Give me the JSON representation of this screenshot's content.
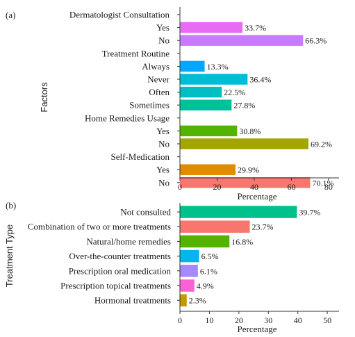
{
  "chart_data": [
    {
      "type": "bar",
      "orientation": "horizontal",
      "panel_label": "(a)",
      "xlabel": "Percentage",
      "ylabel": "Factors",
      "xlim": [
        0,
        85
      ],
      "xticks": [
        0,
        20,
        40,
        60,
        80
      ],
      "grid": false,
      "legend": "none",
      "rows": [
        {
          "label": "Dermatologist Consultation",
          "header": true
        },
        {
          "label": "Yes",
          "value": 33.7,
          "value_label": "33.7%",
          "color": "#e76bf3"
        },
        {
          "label": "No",
          "value": 66.3,
          "value_label": "66.3%",
          "color": "#c77cff"
        },
        {
          "label": "Treatment Routine",
          "header": true
        },
        {
          "label": "Always",
          "value": 13.3,
          "value_label": "13.3%",
          "color": "#00a9ff"
        },
        {
          "label": "Never",
          "value": 36.4,
          "value_label": "36.4%",
          "color": "#00bcd8"
        },
        {
          "label": "Often",
          "value": 22.5,
          "value_label": "22.5%",
          "color": "#00bfc4"
        },
        {
          "label": "Sometimes",
          "value": 27.8,
          "value_label": "27.8%",
          "color": "#00c19a"
        },
        {
          "label": "Home Remedies Usage",
          "header": true
        },
        {
          "label": "Yes",
          "value": 30.8,
          "value_label": "30.8%",
          "color": "#53b400"
        },
        {
          "label": "No",
          "value": 69.2,
          "value_label": "69.2%",
          "color": "#a3a500"
        },
        {
          "label": "Self-Medication",
          "header": true
        },
        {
          "label": "Yes",
          "value": 29.9,
          "value_label": "29.9%",
          "color": "#e28a00"
        },
        {
          "label": "No",
          "value": 70.1,
          "value_label": "70.1%",
          "color": "#f8766d"
        }
      ]
    },
    {
      "type": "bar",
      "orientation": "horizontal",
      "panel_label": "(b)",
      "xlabel": "Percentage",
      "ylabel": "Treatment Type",
      "xlim": [
        0,
        52
      ],
      "xticks": [
        0,
        10,
        20,
        30,
        40,
        50
      ],
      "grid": false,
      "legend": "none",
      "rows": [
        {
          "label": "Not consulted",
          "value": 39.7,
          "value_label": "39.7%",
          "color": "#00c08b"
        },
        {
          "label": "Combination of two or more treatments",
          "value": 23.7,
          "value_label": "23.7%",
          "color": "#f8766d"
        },
        {
          "label": "Natural/home remedies",
          "value": 16.8,
          "value_label": "16.8%",
          "color": "#53b400"
        },
        {
          "label": "Over-the-counter treatments",
          "value": 6.5,
          "value_label": "6.5%",
          "color": "#00b6eb"
        },
        {
          "label": "Prescription oral medication",
          "value": 6.1,
          "value_label": "6.1%",
          "color": "#a58aff"
        },
        {
          "label": "Prescription topical treatments",
          "value": 4.9,
          "value_label": "4.9%",
          "color": "#fb61d7"
        },
        {
          "label": "Hormonal treatments",
          "value": 2.3,
          "value_label": "2.3%",
          "color": "#c49a00"
        }
      ]
    }
  ]
}
